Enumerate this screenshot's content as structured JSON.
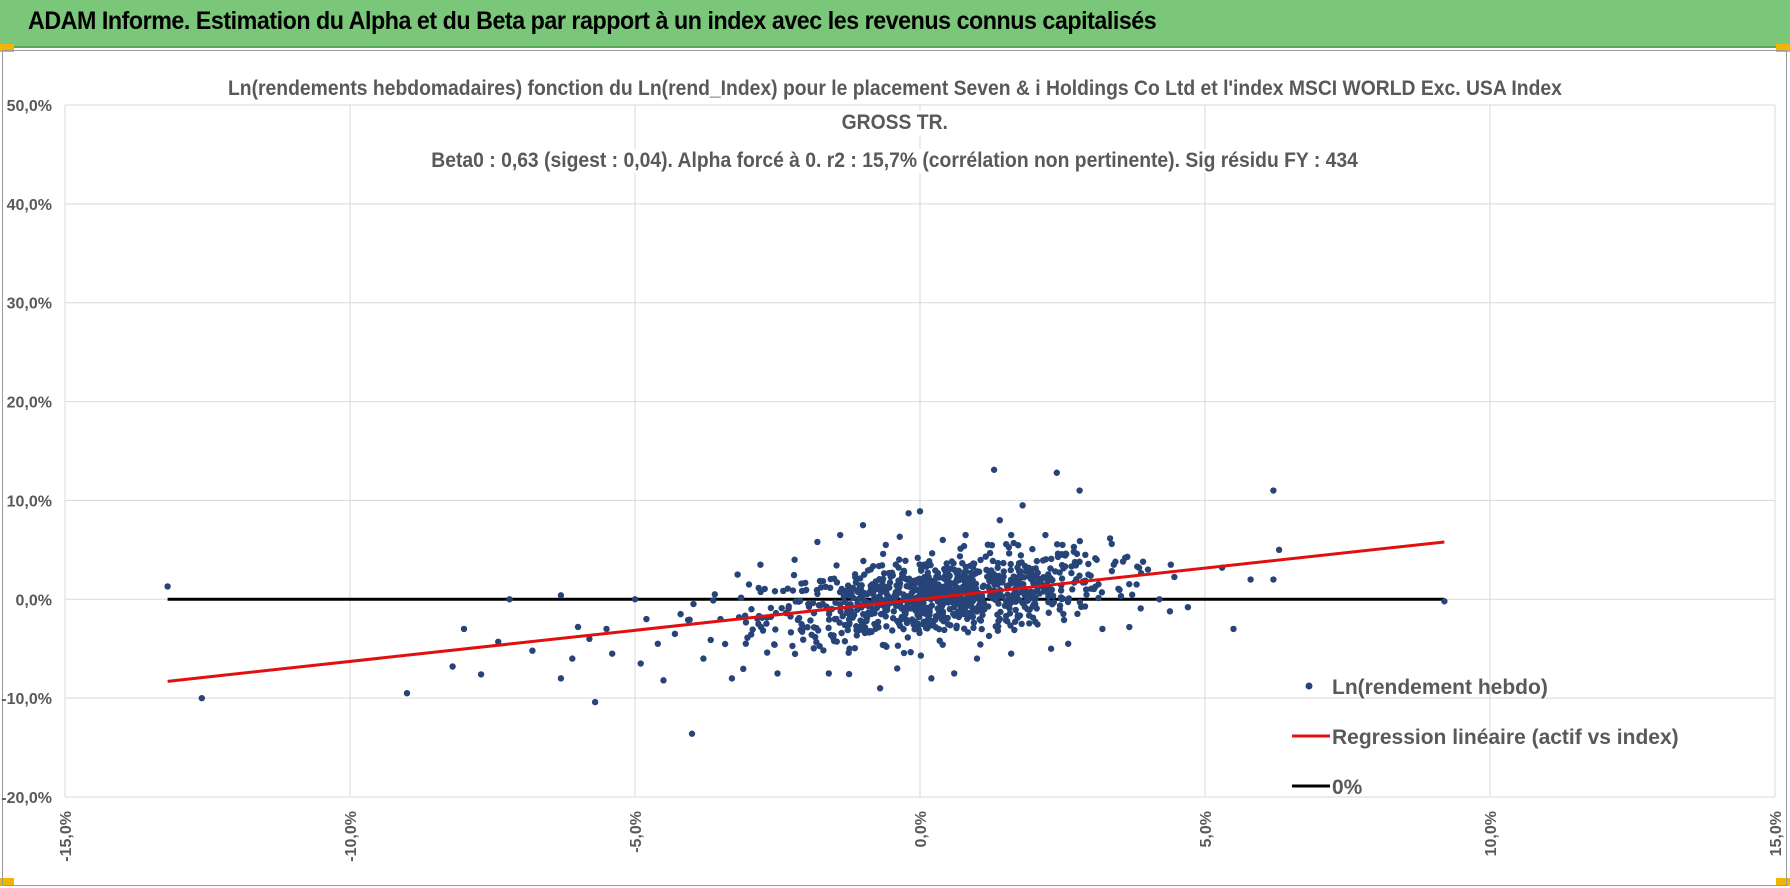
{
  "header": {
    "title": "ADAM Informe. Estimation du Alpha et du Beta par rapport à un index avec les revenus connus capitalisés"
  },
  "colors": {
    "header_bg": "#7ac77a",
    "points": "#264478",
    "regression": "#e01010",
    "zero_line": "#000000",
    "grid": "#d9d9d9",
    "text": "#595959"
  },
  "chart_data": {
    "type": "scatter",
    "title": "Ln(rendements hebdomadaires) fonction du Ln(rend_Index) pour le placement Seven & i Holdings Co Ltd et l'index MSCI WORLD Exc. USA Index",
    "title_line2": "GROSS TR.",
    "subtitle": "Beta0 : 0,63  (sigest : 0,04). Alpha forcé à 0. r2 : 15,7% (corrélation non pertinente). Sig résidu FY : 434",
    "xlabel": "",
    "ylabel": "",
    "xlim": [
      -15,
      15
    ],
    "ylim": [
      -20,
      50
    ],
    "x_ticks": [
      -15,
      -10,
      -5,
      0,
      5,
      10,
      15
    ],
    "x_tick_labels": [
      "-15,0%",
      "-10,0%",
      "-5,0%",
      "0,0%",
      "5,0%",
      "10,0%",
      "15,0%"
    ],
    "y_ticks": [
      -20,
      -10,
      0,
      10,
      20,
      30,
      40,
      50
    ],
    "y_tick_labels": [
      "-20,0%",
      "-10,0%",
      "0,0%",
      "10,0%",
      "20,0%",
      "30,0%",
      "40,0%",
      "50,0%"
    ],
    "grid": true,
    "legend_position": "bottom-right",
    "series": [
      {
        "name": "Ln(rendement hebdo)",
        "kind": "scatter",
        "points": [
          [
            -13.2,
            1.3
          ],
          [
            -12.6,
            -10.0
          ],
          [
            -9.0,
            -9.5
          ],
          [
            -8.2,
            -6.8
          ],
          [
            -8.0,
            -3.0
          ],
          [
            -7.7,
            -7.6
          ],
          [
            -7.4,
            -4.3
          ],
          [
            -7.2,
            0.0
          ],
          [
            -6.8,
            -5.2
          ],
          [
            -6.3,
            0.4
          ],
          [
            -6.3,
            -8.0
          ],
          [
            -6.1,
            -6.0
          ],
          [
            -6.0,
            -2.8
          ],
          [
            -5.8,
            -4.0
          ],
          [
            -5.7,
            -10.4
          ],
          [
            -5.5,
            -3.0
          ],
          [
            -5.4,
            -5.5
          ],
          [
            -5.0,
            0.0
          ],
          [
            -4.9,
            -6.5
          ],
          [
            -4.8,
            -2.0
          ],
          [
            -4.6,
            -4.5
          ],
          [
            -4.5,
            -8.2
          ],
          [
            -4.3,
            -3.5
          ],
          [
            -4.2,
            -1.5
          ],
          [
            -4.0,
            -13.6
          ],
          [
            -3.8,
            -6.0
          ],
          [
            -3.6,
            0.5
          ],
          [
            -3.5,
            -2.0
          ],
          [
            -3.3,
            -8.0
          ],
          [
            -3.2,
            2.5
          ],
          [
            -3.0,
            1.5
          ],
          [
            -2.8,
            3.5
          ],
          [
            -2.5,
            -7.5
          ],
          [
            -2.2,
            4.0
          ],
          [
            -1.8,
            5.8
          ],
          [
            -1.6,
            -7.5
          ],
          [
            -1.4,
            6.5
          ],
          [
            -1.0,
            7.5
          ],
          [
            -0.7,
            -9.0
          ],
          [
            -0.6,
            5.5
          ],
          [
            -0.4,
            -7.0
          ],
          [
            -0.2,
            8.7
          ],
          [
            0.0,
            8.9
          ],
          [
            0.2,
            -8.0
          ],
          [
            0.4,
            6.0
          ],
          [
            0.6,
            -7.5
          ],
          [
            0.8,
            6.5
          ],
          [
            1.0,
            -6.0
          ],
          [
            1.3,
            13.1
          ],
          [
            1.4,
            8.0
          ],
          [
            1.6,
            6.5
          ],
          [
            1.6,
            -5.5
          ],
          [
            1.8,
            9.5
          ],
          [
            2.2,
            6.5
          ],
          [
            2.3,
            -5.0
          ],
          [
            2.4,
            12.8
          ],
          [
            2.5,
            5.5
          ],
          [
            2.6,
            -4.5
          ],
          [
            2.8,
            11.0
          ],
          [
            2.9,
            4.5
          ],
          [
            3.1,
            4.0
          ],
          [
            3.2,
            -3.0
          ],
          [
            3.4,
            3.5
          ],
          [
            3.6,
            4.2
          ],
          [
            3.8,
            1.5
          ],
          [
            4.0,
            3.0
          ],
          [
            4.2,
            0.0
          ],
          [
            4.4,
            3.5
          ],
          [
            4.7,
            -0.8
          ],
          [
            5.3,
            3.2
          ],
          [
            5.5,
            -3.0
          ],
          [
            5.8,
            2.0
          ],
          [
            6.2,
            11.0
          ],
          [
            6.3,
            5.0
          ],
          [
            6.2,
            2.0
          ],
          [
            9.2,
            -0.2
          ]
        ]
      },
      {
        "name": "Regression linéaire (actif vs index)",
        "kind": "line",
        "x": [
          -13.2,
          9.2
        ],
        "y": [
          -8.3,
          5.8
        ]
      },
      {
        "name": "0%",
        "kind": "line",
        "x": [
          -13.2,
          9.2
        ],
        "y": [
          0,
          0
        ]
      }
    ]
  }
}
